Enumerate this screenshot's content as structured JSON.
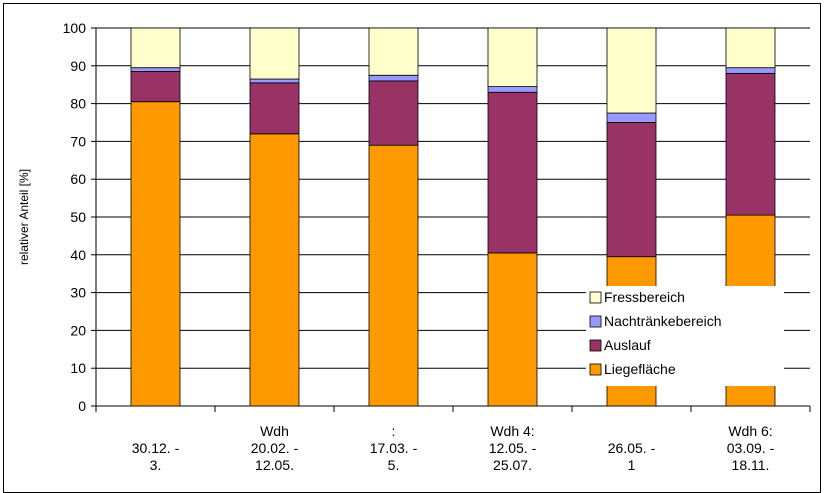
{
  "chart_data": {
    "type": "bar",
    "stacked": true,
    "ylabel": "relativer Anteil [%]",
    "ylim": [
      0,
      100
    ],
    "yticks": [
      0,
      10,
      20,
      30,
      40,
      50,
      60,
      70,
      80,
      90,
      100
    ],
    "grid": true,
    "legend_position": "lower-right",
    "categories": [
      [
        "",
        "30.12. -",
        "3."
      ],
      [
        "Wdh",
        "20.02. -",
        "12.05."
      ],
      [
        ":",
        "17.03. -",
        "5."
      ],
      [
        "Wdh 4:",
        "12.05. -",
        "25.07."
      ],
      [
        "",
        "26.05. -",
        "1"
      ],
      [
        "Wdh 6:",
        "03.09. -",
        "18.11."
      ]
    ],
    "series": [
      {
        "name": "Liegefläche",
        "color": "#FF9900",
        "values": [
          80.5,
          72,
          69,
          40.5,
          39.5,
          50.5
        ]
      },
      {
        "name": "Auslauf",
        "color": "#993366",
        "values": [
          8,
          13.5,
          17,
          42.5,
          35.5,
          37.5
        ]
      },
      {
        "name": "Nachtränkebereich",
        "color": "#9999FF",
        "values": [
          1,
          1,
          1.5,
          1.5,
          2.5,
          1.5
        ]
      },
      {
        "name": "Fressbereich",
        "color": "#FFFFCC",
        "values": [
          10.5,
          13.5,
          12.5,
          15.5,
          22.5,
          10.5
        ]
      }
    ],
    "legend_order": [
      "Fressbereich",
      "Nachtränkebereich",
      "Auslauf",
      "Liegefläche"
    ]
  }
}
